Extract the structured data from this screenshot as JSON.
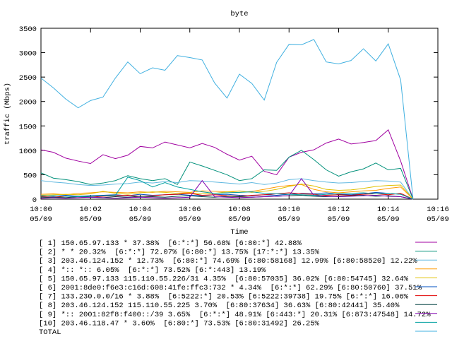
{
  "chart_data": {
    "type": "line",
    "title": "byte",
    "ylabel": "traffic (Mbps)",
    "xlabel": "Time",
    "xlim": [
      0,
      16
    ],
    "xticks": [
      {
        "value": 0,
        "label": "10:00\n05/09"
      },
      {
        "value": 2,
        "label": "10:02\n05/09"
      },
      {
        "value": 4,
        "label": "10:04\n05/09"
      },
      {
        "value": 6,
        "label": "10:06\n05/09"
      },
      {
        "value": 8,
        "label": "10:08\n05/09"
      },
      {
        "value": 10,
        "label": "10:10\n05/09"
      },
      {
        "value": 12,
        "label": "10:12\n05/09"
      },
      {
        "value": 14,
        "label": "10:14\n05/09"
      },
      {
        "value": 16,
        "label": "10:16\n05/09"
      }
    ],
    "ylim": [
      0,
      3500
    ],
    "yticks": [
      0,
      500,
      1000,
      1500,
      2000,
      2500,
      3000,
      3500
    ],
    "x": [
      0,
      0.5,
      1,
      1.5,
      2,
      2.5,
      3,
      3.5,
      4,
      4.5,
      5,
      5.5,
      6,
      6.5,
      7,
      7.5,
      8,
      8.5,
      9,
      9.5,
      10,
      10.5,
      11,
      11.5,
      12,
      12.5,
      13,
      13.5,
      14,
      14.5,
      15
    ],
    "series": [
      {
        "name": "[ 1] 150.65.97.133 * 37.38%  [6:*:*] 56.68% [6:80:*] 42.88%",
        "color": "#a000a0",
        "values": [
          1010,
          960,
          840,
          780,
          730,
          910,
          830,
          900,
          1080,
          1050,
          1170,
          1110,
          1050,
          1140,
          1060,
          920,
          800,
          880,
          570,
          500,
          860,
          960,
          1010,
          1150,
          1230,
          1130,
          1160,
          1200,
          1420,
          780,
          0
        ]
      },
      {
        "name": "[ 2] * * 20.32%  [6:*:*] 72.07% [6:80:*] 13.75% [17:*:*] 13.35%",
        "color": "#00907a",
        "values": [
          540,
          430,
          400,
          360,
          300,
          330,
          380,
          480,
          420,
          380,
          420,
          300,
          760,
          680,
          590,
          500,
          380,
          420,
          600,
          590,
          860,
          1000,
          810,
          600,
          470,
          560,
          620,
          740,
          600,
          630,
          0
        ]
      },
      {
        "name": "[ 3] 203.46.124.152 * 12.73%  [6:80:*] 74.69% [6:80:58168] 12.99% [6:80:58520] 12.22%",
        "color": "#60b8e0",
        "values": [
          380,
          350,
          330,
          300,
          280,
          290,
          310,
          320,
          350,
          330,
          360,
          340,
          380,
          370,
          350,
          330,
          310,
          340,
          300,
          330,
          400,
          420,
          380,
          350,
          330,
          340,
          360,
          380,
          370,
          350,
          0
        ]
      },
      {
        "name": "[ 4] *:: *:: 6.05%  [6:*:*] 73.52% [6:*:443] 13.19%",
        "color": "#ff9a00",
        "values": [
          100,
          110,
          90,
          120,
          130,
          150,
          140,
          130,
          150,
          140,
          160,
          150,
          140,
          170,
          160,
          150,
          140,
          160,
          200,
          250,
          280,
          300,
          200,
          150,
          130,
          150,
          170,
          180,
          220,
          250,
          0
        ]
      },
      {
        "name": "[ 5] 150.65.97.133 115.110.55.226/31 4.35%  [6:80:57035] 36.02% [6:80:54745] 32.64%",
        "color": "#e0c000",
        "values": [
          80,
          90,
          100,
          90,
          110,
          160,
          120,
          100,
          130,
          150,
          140,
          120,
          130,
          110,
          120,
          150,
          170,
          140,
          160,
          200,
          260,
          310,
          270,
          200,
          180,
          190,
          220,
          260,
          280,
          290,
          0
        ]
      },
      {
        "name": "[ 6] 2001:8de0:f6e3:c16d:608:41fe:ffc3:732 * 4.34%  [6:*:*] 62.29% [6:80:50760] 37.51%",
        "color": "#0050c0",
        "values": [
          70,
          60,
          80,
          60,
          70,
          80,
          90,
          70,
          100,
          80,
          90,
          100,
          80,
          70,
          90,
          100,
          80,
          70,
          90,
          80,
          100,
          120,
          110,
          130,
          100,
          90,
          110,
          140,
          120,
          100,
          0
        ]
      },
      {
        "name": "[ 7] 133.230.0.0/16 * 3.88%  [6:5222:*] 20.53% [6:5222:39738] 19.75% [6:*:*] 16.06%",
        "color": "#e00000",
        "values": [
          50,
          40,
          60,
          50,
          40,
          60,
          70,
          80,
          60,
          70,
          90,
          100,
          120,
          80,
          90,
          70,
          60,
          80,
          90,
          110,
          130,
          110,
          100,
          80,
          90,
          80,
          100,
          110,
          90,
          120,
          0
        ]
      },
      {
        "name": "[ 8] 203.46.124.152 115.110.55.225 3.70%  [6:80:37634] 36.63% [6:80:42441] 35.40%",
        "color": "#004040",
        "values": [
          30,
          40,
          30,
          50,
          40,
          30,
          50,
          40,
          60,
          50,
          40,
          60,
          70,
          50,
          40,
          60,
          50,
          40,
          50,
          60,
          70,
          80,
          60,
          50,
          60,
          70,
          80,
          60,
          70,
          50,
          0
        ]
      },
      {
        "name": "[ 9] *:: 2001:82f8:f400::/39 3.65%  [6:*:*] 48.91% [6:443:*] 20.31% [6:873:47548] 14.72%",
        "color": "#8000b0",
        "values": [
          20,
          30,
          20,
          30,
          40,
          30,
          20,
          30,
          40,
          30,
          20,
          30,
          40,
          380,
          50,
          40,
          30,
          40,
          50,
          60,
          70,
          420,
          80,
          60,
          50,
          60,
          70,
          80,
          60,
          50,
          0
        ]
      },
      {
        "name": "[10] 203.46.118.47 * 3.60%  [6:80:*] 73.53% [6:80:31492] 26.25%",
        "color": "#00a0a0",
        "values": [
          60,
          70,
          60,
          50,
          60,
          70,
          80,
          450,
          380,
          250,
          340,
          250,
          200,
          150,
          120,
          130,
          140,
          150,
          120,
          110,
          100,
          90,
          80,
          100,
          110,
          120,
          130,
          110,
          120,
          100,
          0
        ]
      },
      {
        "name": "TOTAL",
        "color": "#40b0e0",
        "values": [
          2480,
          2280,
          2050,
          1870,
          2020,
          2090,
          2480,
          2810,
          2570,
          2690,
          2640,
          2940,
          2900,
          2850,
          2380,
          2070,
          2560,
          2370,
          2030,
          2800,
          3170,
          3160,
          3270,
          2810,
          2770,
          2840,
          3080,
          2830,
          3180,
          2440,
          0
        ]
      }
    ]
  }
}
